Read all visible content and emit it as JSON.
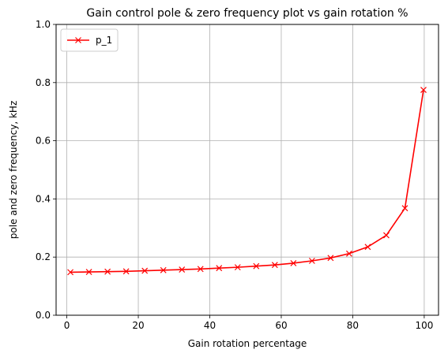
{
  "chart_data": {
    "type": "line",
    "title": "Gain control pole & zero frequency plot vs gain rotation %",
    "xlabel": "Gain rotation percentage",
    "ylabel": "pole and zero frequency, kHz",
    "xlim": [
      -3,
      104
    ],
    "ylim": [
      0,
      1.0
    ],
    "xticks": [
      0,
      20,
      40,
      60,
      80,
      100
    ],
    "yticks": [
      0.0,
      0.2,
      0.4,
      0.6,
      0.8,
      1.0
    ],
    "xtick_labels": [
      "0",
      "20",
      "40",
      "60",
      "80",
      "100"
    ],
    "ytick_labels": [
      "0.0",
      "0.2",
      "0.4",
      "0.6",
      "0.8",
      "1.0"
    ],
    "grid": true,
    "legend_position": "top-left",
    "series": [
      {
        "name": "p_1",
        "color": "#ff0000",
        "marker": "x",
        "x": [
          1,
          6.2,
          11.4,
          16.6,
          21.8,
          27,
          32.2,
          37.4,
          42.6,
          47.8,
          53,
          58.2,
          63.4,
          68.6,
          73.8,
          79,
          84.2,
          89.4,
          94.6,
          99.8
        ],
        "y": [
          0.148,
          0.149,
          0.15,
          0.151,
          0.153,
          0.155,
          0.157,
          0.159,
          0.162,
          0.165,
          0.169,
          0.173,
          0.179,
          0.187,
          0.197,
          0.212,
          0.235,
          0.275,
          0.368,
          0.775
        ]
      }
    ]
  }
}
